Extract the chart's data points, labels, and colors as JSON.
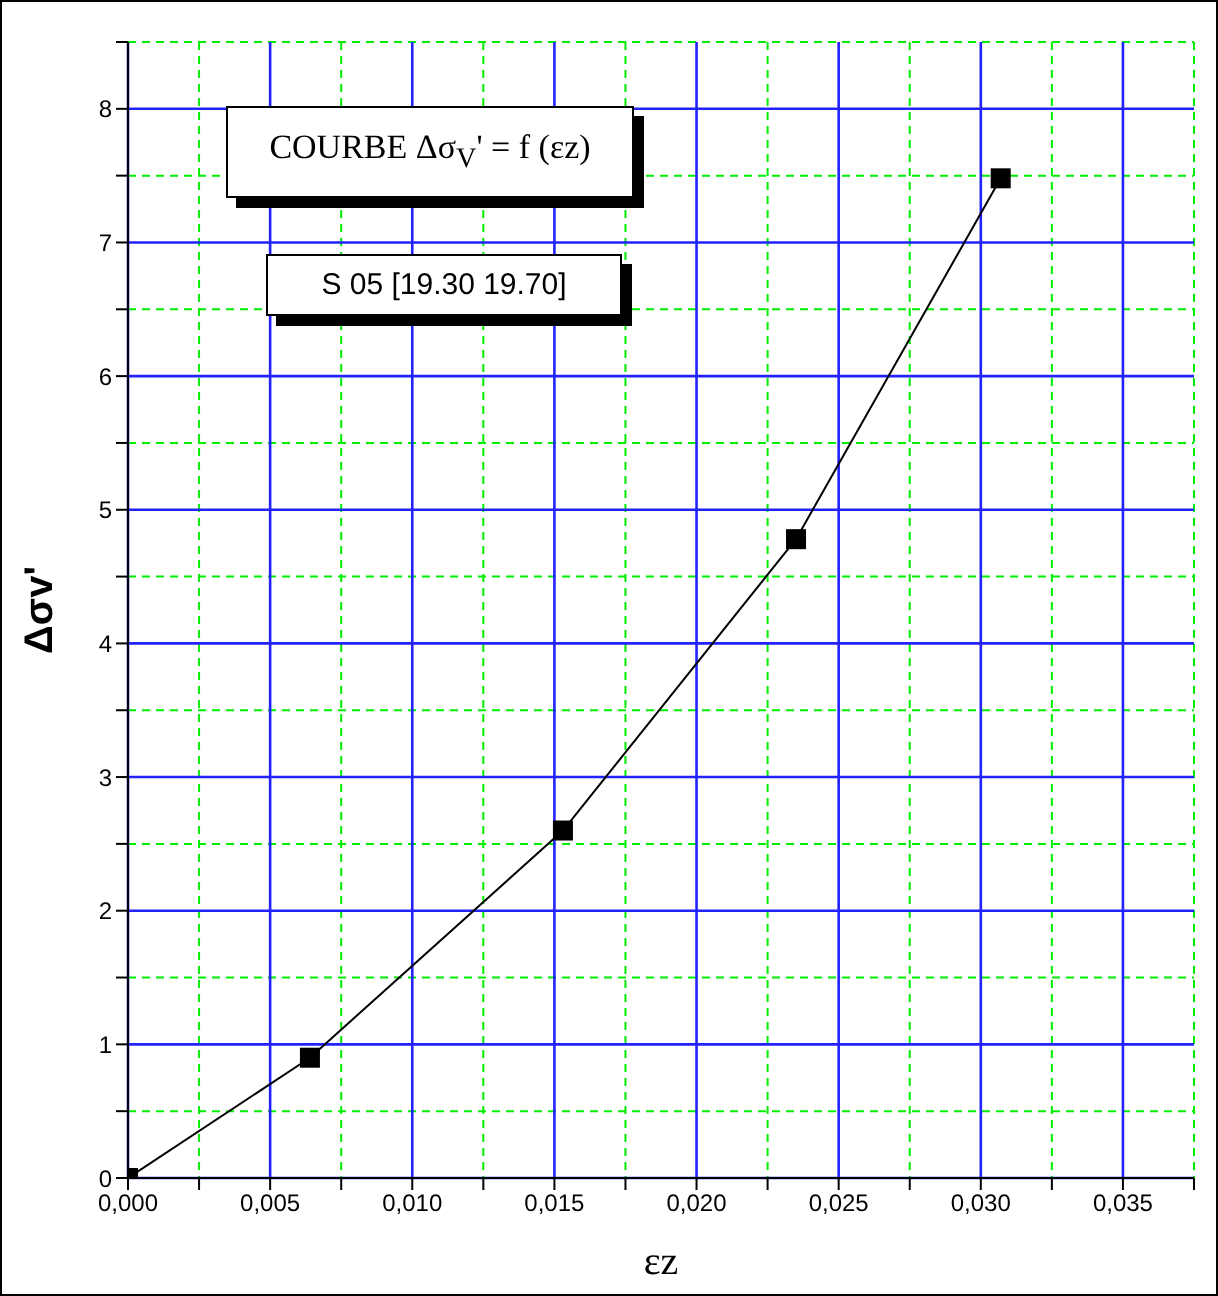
{
  "chart_data": {
    "type": "line",
    "title": "COURBE Δσ$_{V}$' = f (εz)",
    "annotations": [
      "S 05 [19.30  19.70]"
    ],
    "xlabel": "εz",
    "ylabel": "Δσv'",
    "x": [
      0,
      0.0064,
      0.0153,
      0.0235,
      0.0307
    ],
    "series": [
      {
        "color": "#000000",
        "values": [
          0,
          0.9,
          2.6,
          4.78,
          7.48
        ]
      }
    ],
    "xlim": [
      0,
      0.0375
    ],
    "ylim": [
      0,
      8.5
    ],
    "xticks": [
      {
        "value": 0,
        "label": "0,000"
      },
      {
        "value": 0.0025,
        "label": null
      },
      {
        "value": 0.005,
        "label": "0,005"
      },
      {
        "value": 0.0075,
        "label": null
      },
      {
        "value": 0.01,
        "label": "0,010"
      },
      {
        "value": 0.0125,
        "label": null
      },
      {
        "value": 0.015,
        "label": "0,015"
      },
      {
        "value": 0.0175,
        "label": null
      },
      {
        "value": 0.02,
        "label": "0,020"
      },
      {
        "value": 0.0225,
        "label": null
      },
      {
        "value": 0.025,
        "label": "0,025"
      },
      {
        "value": 0.0275,
        "label": null
      },
      {
        "value": 0.03,
        "label": "0,030"
      },
      {
        "value": 0.0325,
        "label": null
      },
      {
        "value": 0.035,
        "label": "0,035"
      },
      {
        "value": 0.0375,
        "label": null
      }
    ],
    "yticks": [
      0,
      {
        "value": 0.5,
        "label": null
      },
      1,
      {
        "value": 1.5,
        "label": null
      },
      2,
      {
        "value": 2.5,
        "label": null
      },
      3,
      {
        "value": 3.5,
        "label": null
      },
      4,
      {
        "value": 4.5,
        "label": null
      },
      5,
      {
        "value": 5.5,
        "label": null
      },
      6,
      {
        "value": 6.5,
        "label": null
      },
      7,
      {
        "value": 7.5,
        "label": null
      },
      8,
      {
        "value": 8.5,
        "label": null
      }
    ],
    "grid": true,
    "marker": "square",
    "line_style": "solid"
  }
}
